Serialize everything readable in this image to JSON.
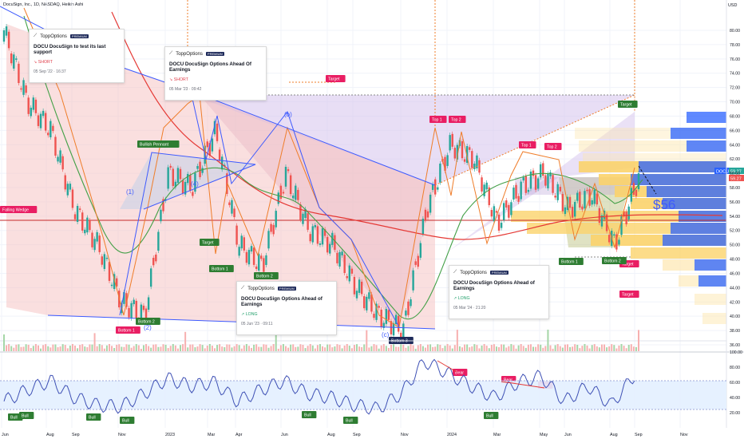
{
  "header": {
    "symbol_title": "DocuSign, Inc., 1D, NASDAQ, Heikin Ashi"
  },
  "price_axis": {
    "currency": "USD",
    "ticks": [
      "80.00",
      "78.00",
      "76.00",
      "74.00",
      "72.00",
      "70.00",
      "68.00",
      "66.00",
      "64.00",
      "62.00",
      "60.00",
      "58.00",
      "56.00",
      "54.00",
      "52.00",
      "50.00",
      "48.00",
      "46.00",
      "44.00",
      "42.00",
      "40.00",
      "38.00",
      "36.00"
    ],
    "current_symbol": "DOCU",
    "current_price": "59.27",
    "secondary_price": "59.27"
  },
  "rsi_axis": {
    "ticks": [
      "100.00",
      "80.00",
      "60.00",
      "40.00",
      "20.00"
    ]
  },
  "time_axis": {
    "labels": [
      "Jun",
      "Aug",
      "Sep",
      "Nov",
      "2023",
      "Mar",
      "Apr",
      "Jun",
      "Aug",
      "Sep",
      "Nov",
      "2024",
      "Mar",
      "May",
      "Jun",
      "Aug",
      "Sep",
      "Nov"
    ]
  },
  "annotations": {
    "price_target_text": "$56",
    "wave_labels": [
      "(1)",
      "(2)",
      "(4)",
      "(b)",
      "(c)"
    ],
    "tags": {
      "falling_wedge": "Falling Wedge",
      "bullish_pennant": "Bullish Pennant",
      "target": "Target",
      "top1": "Top 1",
      "top2": "Top 2",
      "bottom1": "Bottom 1",
      "bottom2": "Bottom 2",
      "bottom3": "Bottom 3",
      "bear": "Bear",
      "bull": "Bull"
    }
  },
  "ideas": [
    {
      "brand": "ToppOptions",
      "badge": "PREMIUM",
      "title": "DOCU DocuSign  to test its last support",
      "direction": "SHORT",
      "date": "05 Sep '22 · 16:37"
    },
    {
      "brand": "ToppOptions",
      "badge": "PREMIUM",
      "title": "DOCU DocuSign Options Ahead Of Earnings",
      "direction": "SHORT",
      "date": "05 Mar '23 · 09:42"
    },
    {
      "brand": "ToppOptions",
      "badge": "PREMIUM",
      "title": "DOCU DocuSign Options Ahead of Earnings",
      "direction": "LONG",
      "date": "05 Jun '23 · 09:11"
    },
    {
      "brand": "ToppOptions",
      "badge": "PREMIUM",
      "title": "DOCU DocuSign Options Ahead of Earnings",
      "direction": "LONG",
      "date": "05 Mar '24 · 21:20"
    }
  ],
  "colors": {
    "bull_candle": "#26a69a",
    "bear_candle": "#ef5350",
    "ma_red": "#e53935",
    "ma_green": "#43a047",
    "pattern_orange": "#ef7d2a",
    "pattern_blue": "#3d5afe",
    "rsi_line": "#3f51b5",
    "rsi_fill": "#e3f0ff",
    "tag_red": "#e91e63",
    "tag_green": "#2e7d32"
  },
  "chart_data": {
    "type": "line",
    "title": "DocuSign, Inc., 1D, NASDAQ, Heikin Ashi",
    "xlabel": "",
    "ylabel": "USD",
    "ylim": [
      36,
      82
    ],
    "x": [
      "2022-06",
      "2022-07",
      "2022-08",
      "2022-09",
      "2022-10",
      "2022-11",
      "2022-12",
      "2023-01",
      "2023-02",
      "2023-03",
      "2023-04",
      "2023-05",
      "2023-06",
      "2023-07",
      "2023-08",
      "2023-09",
      "2023-10",
      "2023-11",
      "2023-12",
      "2024-01",
      "2024-02",
      "2024-03",
      "2024-04",
      "2024-05",
      "2024-06",
      "2024-07",
      "2024-08",
      "2024-09"
    ],
    "series": [
      {
        "name": "DOCU",
        "values": [
          80,
          70,
          66,
          55,
          50,
          42,
          40,
          60,
          58,
          66,
          50,
          47,
          60,
          52,
          50,
          44,
          40,
          38,
          55,
          64,
          62,
          53,
          58,
          60,
          55,
          57,
          50,
          59.27
        ]
      }
    ],
    "rsi": {
      "ylim": [
        0,
        100
      ],
      "ticks": [
        20,
        40,
        60,
        80
      ],
      "values": [
        35,
        50,
        62,
        40,
        30,
        28,
        45,
        65,
        55,
        60,
        35,
        50,
        62,
        45,
        40,
        30,
        25,
        45,
        88,
        72,
        55,
        40,
        60,
        68,
        35,
        55,
        30,
        70
      ]
    }
  }
}
